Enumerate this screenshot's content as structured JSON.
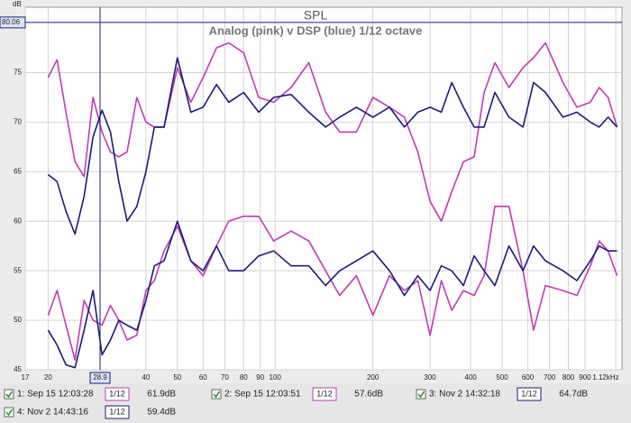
{
  "chart_data": {
    "type": "line",
    "title": "SPL",
    "subtitle": "Analog (pink) v DSP (blue) 1/12 octave",
    "y_unit": "dB",
    "log_x": true,
    "grid": true,
    "xlim": [
      17,
      1170
    ],
    "ylim": [
      45,
      81.6
    ],
    "xticks": [
      17,
      20,
      40,
      50,
      60,
      70,
      80,
      90,
      100,
      200,
      300,
      400,
      500,
      600,
      700,
      800,
      900,
      {
        "value": 1120,
        "label": "1.12kHz"
      }
    ],
    "yticks": [
      45,
      50,
      55,
      60,
      65,
      70,
      75
    ],
    "cursor": {
      "x": 28.9,
      "y": 80.06
    },
    "x": [
      20,
      21.3,
      22.7,
      24.2,
      25.8,
      27.5,
      29.3,
      31.1,
      33,
      35,
      37.5,
      40,
      42.5,
      45.5,
      50,
      55,
      60,
      66,
      72,
      80,
      89,
      99,
      112,
      127,
      143,
      158,
      178,
      200,
      225,
      250,
      275,
      300,
      325,
      350,
      380,
      410,
      440,
      475,
      525,
      580,
      625,
      680,
      770,
      850,
      935,
      995,
      1060,
      1130
    ],
    "series": [
      {
        "name": "1: Sep 15 12:03:28",
        "color": "#c23bb4",
        "smoothing": "1/12",
        "cursor_value": 61.9,
        "cursor_value_label": "61.9dB",
        "values": [
          74.5,
          76.3,
          71,
          66,
          64.5,
          72.5,
          69,
          67,
          66.5,
          67,
          72.5,
          70,
          69.5,
          69.5,
          75.5,
          72,
          74.5,
          77.5,
          78,
          77,
          72.5,
          72,
          73.5,
          76,
          71,
          69,
          69,
          72.5,
          71.5,
          70.5,
          67,
          62,
          60,
          63,
          66,
          66.5,
          73,
          76,
          73.5,
          75.5,
          76.5,
          78,
          74,
          71.5,
          72,
          73.5,
          72.5,
          69.5
        ]
      },
      {
        "name": "2: Sep 15 12:03:51",
        "color": "#c23bb4",
        "smoothing": "1/12",
        "cursor_value": 57.6,
        "cursor_value_label": "57.6dB",
        "values": [
          50.5,
          53,
          49.5,
          46,
          52,
          50,
          49.5,
          51.5,
          50,
          48,
          48.5,
          53,
          54,
          57,
          59.5,
          56,
          54.5,
          57.5,
          60,
          60.5,
          60.5,
          58,
          59,
          58,
          55,
          52.5,
          54.5,
          50.5,
          54.5,
          53,
          54,
          48.5,
          54,
          51,
          53,
          52.5,
          54.5,
          61.5,
          61.5,
          55,
          49,
          53.5,
          53,
          52.5,
          55.5,
          58,
          57,
          54.5
        ]
      },
      {
        "name": "3: Nov 2 14:32:18",
        "color": "#1c1c78",
        "smoothing": "1/12",
        "cursor_value": 64.7,
        "cursor_value_label": "64.7dB",
        "values": [
          64.7,
          64,
          61,
          58.7,
          62.5,
          68.5,
          71.2,
          69,
          64,
          60,
          61.5,
          65,
          69.5,
          69.5,
          76.5,
          71,
          71.5,
          73.8,
          72,
          73,
          71,
          72.5,
          72.8,
          71,
          69.5,
          70.5,
          71.5,
          70.5,
          71.5,
          69.5,
          71,
          71.5,
          71,
          74,
          71.5,
          69.5,
          69.5,
          73,
          70.5,
          69.5,
          74,
          73,
          70.5,
          71,
          70,
          69.5,
          70.5,
          69.5
        ]
      },
      {
        "name": "4: Nov 2 14:43:16",
        "color": "#1c1c78",
        "smoothing": "1/12",
        "cursor_value": 59.4,
        "cursor_value_label": "59.4dB",
        "values": [
          49,
          47.5,
          45.5,
          45.2,
          49,
          53,
          46.5,
          48,
          50,
          49.5,
          49,
          52,
          55.5,
          56,
          60,
          56,
          55,
          57.5,
          55,
          55,
          56.5,
          57,
          55.5,
          55.5,
          53.5,
          55,
          56,
          57,
          55,
          52.5,
          54.5,
          53,
          55.5,
          55,
          53.5,
          56.5,
          55,
          53.5,
          57.5,
          55,
          57.5,
          56,
          55,
          54,
          56,
          57.5,
          57,
          57
        ]
      }
    ]
  }
}
